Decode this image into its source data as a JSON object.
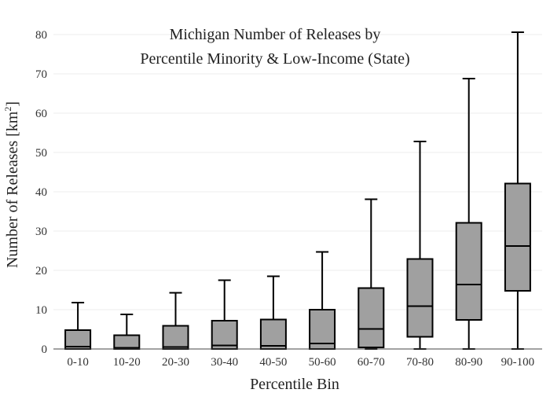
{
  "chart_data": {
    "type": "box",
    "title_line1": "Michigan Number of Releases by",
    "title_line2": "Percentile Minority & Low-Income (State)",
    "xlabel": "Percentile Bin",
    "ylabel_main": "Number of Releases  [km",
    "ylabel_sup": "2",
    "ylabel_close": "]",
    "ylim": [
      0,
      80
    ],
    "yticks": [
      0,
      10,
      20,
      30,
      40,
      50,
      60,
      70,
      80
    ],
    "grid": true,
    "box_color": "#a0a0a0",
    "categories": [
      "0-10",
      "10-20",
      "20-30",
      "30-40",
      "40-50",
      "50-60",
      "60-70",
      "70-80",
      "80-90",
      "90-100"
    ],
    "boxes": [
      {
        "min": 0,
        "q1": 0,
        "median": 0.6,
        "q3": 4.8,
        "max": 11.8
      },
      {
        "min": 0,
        "q1": 0,
        "median": 0.3,
        "q3": 3.5,
        "max": 8.8
      },
      {
        "min": 0,
        "q1": 0,
        "median": 0.5,
        "q3": 5.9,
        "max": 14.3
      },
      {
        "min": 0,
        "q1": 0,
        "median": 0.9,
        "q3": 7.2,
        "max": 17.5
      },
      {
        "min": 0,
        "q1": 0,
        "median": 0.8,
        "q3": 7.5,
        "max": 18.5
      },
      {
        "min": 0,
        "q1": 0,
        "median": 1.4,
        "q3": 10.0,
        "max": 24.7
      },
      {
        "min": 0,
        "q1": 0.4,
        "median": 5.1,
        "q3": 15.5,
        "max": 38.1
      },
      {
        "min": 0,
        "q1": 3.1,
        "median": 10.9,
        "q3": 22.9,
        "max": 52.8
      },
      {
        "min": 0,
        "q1": 7.4,
        "median": 16.4,
        "q3": 32.1,
        "max": 68.8
      },
      {
        "min": 0,
        "q1": 14.8,
        "median": 26.2,
        "q3": 42.1,
        "max": 80.6
      }
    ]
  }
}
